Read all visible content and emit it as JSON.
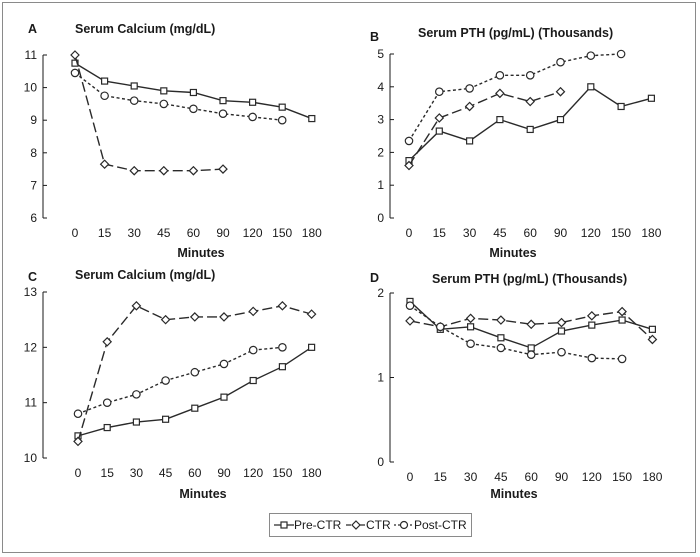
{
  "colors": {
    "line": "#2a2a2a",
    "frame": "#8a8a8a"
  },
  "legend": {
    "items": [
      {
        "label": "Pre-CTR",
        "marker": "square",
        "dash": "solid"
      },
      {
        "label": "CTR",
        "marker": "diamond",
        "dash": "long"
      },
      {
        "label": "Post-CTR",
        "marker": "circle",
        "dash": "short"
      }
    ]
  },
  "chart_data": [
    {
      "panel": "A",
      "type": "line",
      "title": "Serum Calcium (mg/dL)",
      "xlabel": "Minutes",
      "categories": [
        "0",
        "15",
        "30",
        "45",
        "60",
        "90",
        "120",
        "150",
        "180"
      ],
      "ylim": [
        6,
        11
      ],
      "yticks": [
        6,
        7,
        8,
        9,
        10,
        11
      ],
      "series": [
        {
          "name": "Pre-CTR",
          "values": [
            10.75,
            10.2,
            10.05,
            9.9,
            9.85,
            9.6,
            9.55,
            9.4,
            9.05
          ]
        },
        {
          "name": "CTR",
          "values": [
            11.0,
            7.65,
            7.45,
            7.45,
            7.45,
            7.5,
            null,
            null,
            null
          ]
        },
        {
          "name": "Post-CTR",
          "values": [
            10.45,
            9.75,
            9.6,
            9.5,
            9.35,
            9.2,
            9.1,
            9.0,
            null
          ]
        }
      ]
    },
    {
      "panel": "B",
      "type": "line",
      "title": "Serum PTH (pg/mL) (Thousands)",
      "xlabel": "Minutes",
      "categories": [
        "0",
        "15",
        "30",
        "45",
        "60",
        "90",
        "120",
        "150",
        "180"
      ],
      "ylim": [
        0,
        5
      ],
      "yticks": [
        0,
        1,
        2,
        3,
        4,
        5
      ],
      "series": [
        {
          "name": "Pre-CTR",
          "values": [
            1.75,
            2.65,
            2.35,
            3.0,
            2.7,
            3.0,
            4.0,
            3.4,
            3.65
          ]
        },
        {
          "name": "CTR",
          "values": [
            1.6,
            3.05,
            3.4,
            3.8,
            3.55,
            3.85,
            null,
            null,
            null
          ]
        },
        {
          "name": "Post-CTR",
          "values": [
            2.35,
            3.85,
            3.95,
            4.35,
            4.35,
            4.75,
            4.95,
            5.0,
            null
          ]
        }
      ]
    },
    {
      "panel": "C",
      "type": "line",
      "title": "Serum Calcium (mg/dL)",
      "xlabel": "Minutes",
      "categories": [
        "0",
        "15",
        "30",
        "45",
        "60",
        "90",
        "120",
        "150",
        "180"
      ],
      "ylim": [
        10,
        13
      ],
      "yticks": [
        10,
        11,
        12,
        13
      ],
      "series": [
        {
          "name": "Pre-CTR",
          "values": [
            10.4,
            10.55,
            10.65,
            10.7,
            10.9,
            11.1,
            11.4,
            11.65,
            12.0
          ]
        },
        {
          "name": "CTR",
          "values": [
            10.3,
            12.1,
            12.75,
            12.5,
            12.55,
            12.55,
            12.65,
            12.75,
            12.6
          ]
        },
        {
          "name": "Post-CTR",
          "values": [
            10.8,
            11.0,
            11.15,
            11.4,
            11.55,
            11.7,
            11.95,
            12.0,
            null
          ]
        }
      ]
    },
    {
      "panel": "D",
      "type": "line",
      "title": "Serum PTH (pg/mL) (Thousands)",
      "xlabel": "Minutes",
      "categories": [
        "0",
        "15",
        "30",
        "45",
        "60",
        "90",
        "120",
        "150",
        "180"
      ],
      "ylim": [
        0,
        2
      ],
      "yticks": [
        0,
        1,
        2
      ],
      "series": [
        {
          "name": "Pre-CTR",
          "values": [
            1.9,
            1.57,
            1.6,
            1.47,
            1.35,
            1.55,
            1.62,
            1.68,
            1.57
          ]
        },
        {
          "name": "CTR",
          "values": [
            1.67,
            1.6,
            1.7,
            1.68,
            1.63,
            1.65,
            1.73,
            1.78,
            1.45
          ]
        },
        {
          "name": "Post-CTR",
          "values": [
            1.85,
            1.6,
            1.4,
            1.35,
            1.27,
            1.3,
            1.23,
            1.22,
            null
          ]
        }
      ]
    }
  ]
}
